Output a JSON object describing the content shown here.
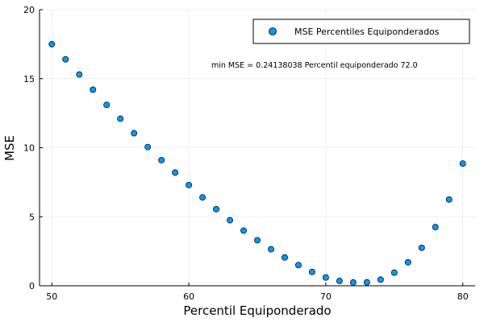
{
  "chart_data": {
    "type": "scatter",
    "xlabel": "Percentil Equiponderado",
    "ylabel": "MSE",
    "xlim": [
      49.1,
      80.9
    ],
    "ylim": [
      0,
      20
    ],
    "xticks": [
      50,
      60,
      70,
      80
    ],
    "yticks": [
      0,
      5,
      10,
      15,
      20
    ],
    "grid": true,
    "legend_position": "top-right",
    "annotation": "min MSE = 0.24138038  Percentil equiponderado 72.0",
    "series": [
      {
        "name": "MSE Percentiles Equiponderados",
        "color": "#009af9",
        "x": [
          50,
          51,
          52,
          53,
          54,
          55,
          56,
          57,
          58,
          59,
          60,
          61,
          62,
          63,
          64,
          65,
          66,
          67,
          68,
          69,
          70,
          71,
          72,
          73,
          74,
          75,
          76,
          77,
          78,
          79,
          80
        ],
        "y": [
          17.5,
          16.4,
          15.3,
          14.2,
          13.1,
          12.1,
          11.05,
          10.05,
          9.1,
          8.2,
          7.3,
          6.4,
          5.55,
          4.75,
          4.0,
          3.3,
          2.65,
          2.05,
          1.5,
          1.0,
          0.6,
          0.35,
          0.24,
          0.25,
          0.45,
          0.95,
          1.7,
          2.75,
          4.25,
          6.25,
          8.85
        ]
      }
    ]
  }
}
